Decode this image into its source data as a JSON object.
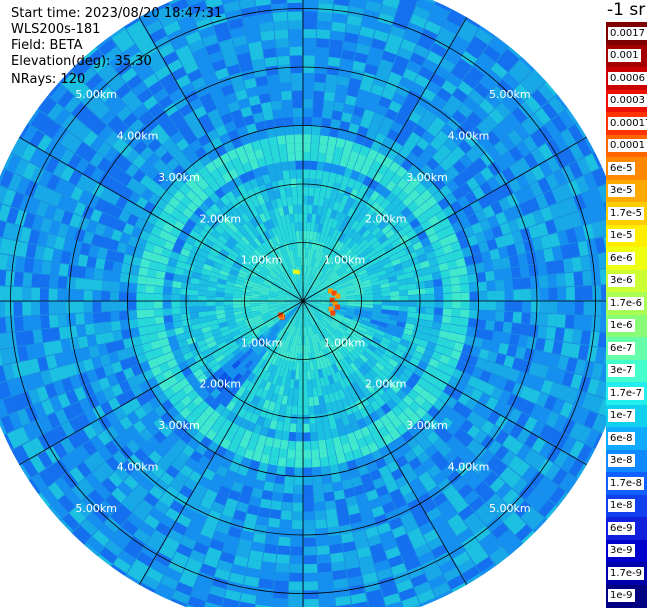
{
  "header": {
    "start_time": "Start time: 2023/08/20 18:47:31",
    "instrument": "WLS200s-181",
    "field": "Field: BETA",
    "elevation": "Elevation(deg): 35.30",
    "nrays": "NRays: 120"
  },
  "colorbar": {
    "unit_label": "-1 sr",
    "labels": [
      "0.0017",
      "0.001",
      "0.0006",
      "0.0003",
      "0.00017",
      "0.0001",
      "6e-5",
      "3e-5",
      "1.7e-5",
      "1e-5",
      "6e-6",
      "3e-6",
      "1.7e-6",
      "1e-6",
      "6e-7",
      "3e-7",
      "1.7e-7",
      "1e-7",
      "6e-8",
      "3e-8",
      "1.7e-8",
      "1e-8",
      "6e-9",
      "3e-9",
      "1.7e-9",
      "1e-9"
    ],
    "colors": [
      "#7f0000",
      "#a50000",
      "#cc0000",
      "#ee1100",
      "#ff3300",
      "#ff6600",
      "#ff8800",
      "#ffaa00",
      "#ffcc00",
      "#ffee00",
      "#eeff10",
      "#ccff33",
      "#aaff55",
      "#88ff77",
      "#66ffaa",
      "#44ffcc",
      "#22eeee",
      "#10d0f0",
      "#10aaff",
      "#1088ff",
      "#1060ff",
      "#1040ee",
      "#1020dd",
      "#0000cc",
      "#0000aa",
      "#000080"
    ]
  },
  "chart_data": {
    "type": "polar-heatmap",
    "field": "BETA",
    "elevation_deg": 35.3,
    "n_rays": 120,
    "range_rings_km": [
      1,
      2,
      3,
      4,
      5
    ],
    "range_ring_labels": [
      "1.00km",
      "2.00km",
      "3.00km",
      "4.00km",
      "5.00km"
    ],
    "max_range_km": 5.6,
    "radials_deg": [
      0,
      30,
      60,
      90,
      120,
      150,
      180,
      210,
      240,
      270,
      300,
      330
    ],
    "features": [
      {
        "description_value": "aerosol enhancement ring",
        "range_km": 2.6,
        "beta": 1.7e-07
      },
      {
        "description_value": "near-range background",
        "range_km": 1.0,
        "beta": 1e-07
      },
      {
        "description_value": "strong return east of site",
        "azimuth_deg": 95,
        "range_km": 0.55,
        "beta": 3e-05
      },
      {
        "description_value": "strong return southwest",
        "azimuth_deg": 235,
        "range_km": 0.5,
        "beta": 1e-05
      },
      {
        "description_value": "small return north",
        "azimuth_deg": 350,
        "range_km": 0.5,
        "beta": 1.7e-05
      }
    ]
  }
}
